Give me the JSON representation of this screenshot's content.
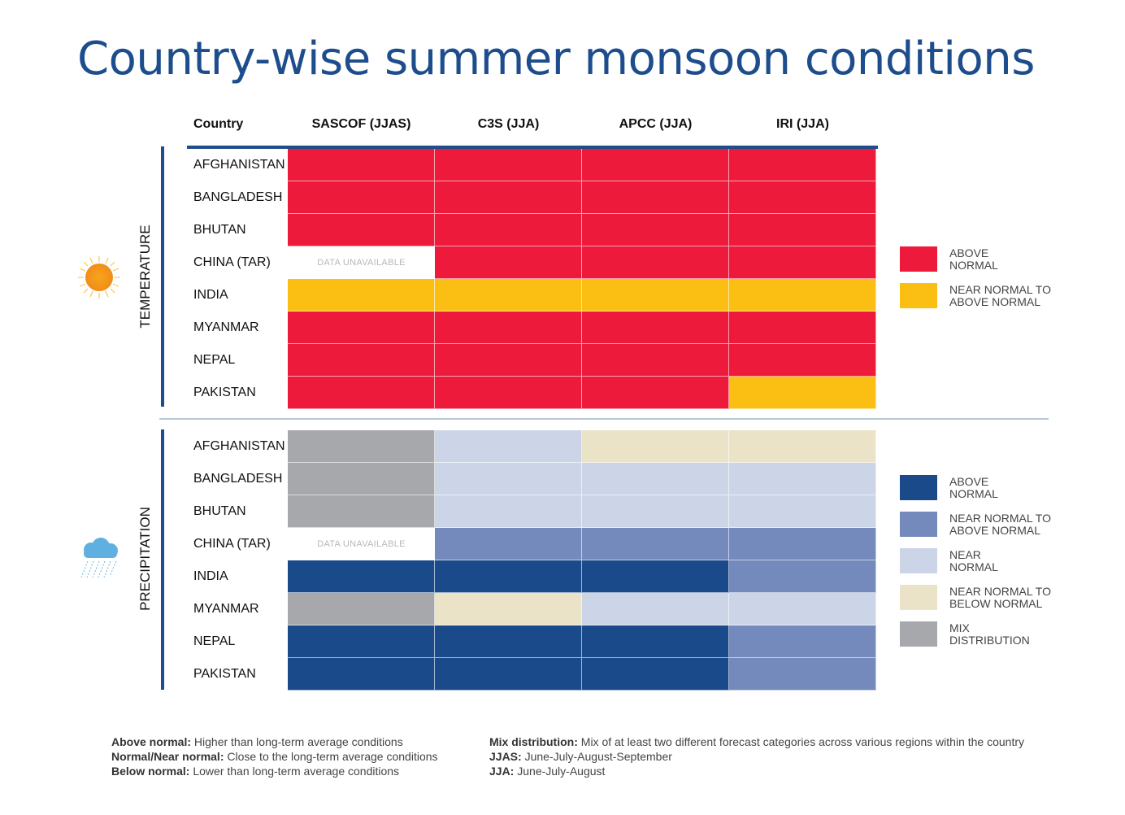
{
  "title": "Country-wise summer monsoon conditions",
  "header": {
    "country": "Country",
    "columns": [
      "SASCOF (JJAS)",
      "C3S (JJA)",
      "APCC (JJA)",
      "IRI (JJA)"
    ]
  },
  "colors": {
    "above_normal_temp": "#ed1a3b",
    "near_to_above_temp": "#fbbf14",
    "above_normal_prec": "#1a4a8a",
    "near_to_above_prec": "#7489bc",
    "near_normal": "#ccd5e8",
    "near_to_below": "#ebe3c8",
    "mix": "#a7a8ac",
    "unavailable": "#ffffff"
  },
  "chart_data": {
    "type": "table",
    "title": "Country-wise summer monsoon conditions",
    "columns": [
      "SASCOF (JJAS)",
      "C3S (JJA)",
      "APCC (JJA)",
      "IRI (JJA)"
    ],
    "sections": [
      {
        "label": "TEMPERATURE",
        "rows": [
          {
            "country": "AFGHANISTAN",
            "values": [
              "above_normal_temp",
              "above_normal_temp",
              "above_normal_temp",
              "above_normal_temp"
            ]
          },
          {
            "country": "BANGLADESH",
            "values": [
              "above_normal_temp",
              "above_normal_temp",
              "above_normal_temp",
              "above_normal_temp"
            ]
          },
          {
            "country": "BHUTAN",
            "values": [
              "above_normal_temp",
              "above_normal_temp",
              "above_normal_temp",
              "above_normal_temp"
            ]
          },
          {
            "country": "CHINA (TAR)",
            "values": [
              "unavailable",
              "above_normal_temp",
              "above_normal_temp",
              "above_normal_temp"
            ]
          },
          {
            "country": "INDIA",
            "values": [
              "near_to_above_temp",
              "near_to_above_temp",
              "near_to_above_temp",
              "near_to_above_temp"
            ]
          },
          {
            "country": "MYANMAR",
            "values": [
              "above_normal_temp",
              "above_normal_temp",
              "above_normal_temp",
              "above_normal_temp"
            ]
          },
          {
            "country": "NEPAL",
            "values": [
              "above_normal_temp",
              "above_normal_temp",
              "above_normal_temp",
              "above_normal_temp"
            ]
          },
          {
            "country": "PAKISTAN",
            "values": [
              "above_normal_temp",
              "above_normal_temp",
              "above_normal_temp",
              "near_to_above_temp"
            ]
          }
        ],
        "legend": [
          {
            "key": "above_normal_temp",
            "label": "ABOVE NORMAL"
          },
          {
            "key": "near_to_above_temp",
            "label": "NEAR NORMAL TO ABOVE NORMAL"
          }
        ]
      },
      {
        "label": "PRECIPITATION",
        "rows": [
          {
            "country": "AFGHANISTAN",
            "values": [
              "mix",
              "near_normal",
              "near_to_below",
              "near_to_below"
            ]
          },
          {
            "country": "BANGLADESH",
            "values": [
              "mix",
              "near_normal",
              "near_normal",
              "near_normal"
            ]
          },
          {
            "country": "BHUTAN",
            "values": [
              "mix",
              "near_normal",
              "near_normal",
              "near_normal"
            ]
          },
          {
            "country": "CHINA (TAR)",
            "values": [
              "unavailable",
              "near_to_above_prec",
              "near_to_above_prec",
              "near_to_above_prec"
            ]
          },
          {
            "country": "INDIA",
            "values": [
              "above_normal_prec",
              "above_normal_prec",
              "above_normal_prec",
              "near_to_above_prec"
            ]
          },
          {
            "country": "MYANMAR",
            "values": [
              "mix",
              "near_to_below",
              "near_normal",
              "near_normal"
            ]
          },
          {
            "country": "NEPAL",
            "values": [
              "above_normal_prec",
              "above_normal_prec",
              "above_normal_prec",
              "near_to_above_prec"
            ]
          },
          {
            "country": "PAKISTAN",
            "values": [
              "above_normal_prec",
              "above_normal_prec",
              "above_normal_prec",
              "near_to_above_prec"
            ]
          }
        ],
        "legend": [
          {
            "key": "above_normal_prec",
            "label": "ABOVE NORMAL"
          },
          {
            "key": "near_to_above_prec",
            "label": "NEAR NORMAL TO ABOVE NORMAL"
          },
          {
            "key": "near_normal",
            "label": "NEAR NORMAL"
          },
          {
            "key": "near_to_below",
            "label": "NEAR NORMAL TO BELOW NORMAL"
          },
          {
            "key": "mix",
            "label": "MIX DISTRIBUTION"
          }
        ]
      }
    ],
    "unavailable_text": "DATA UNAVAILABLE"
  },
  "notes": {
    "left": [
      {
        "term": "Above normal:",
        "text": " Higher than long-term average conditions"
      },
      {
        "term": "Normal/Near normal:",
        "text": " Close to the long-term average conditions"
      },
      {
        "term": "Below normal:",
        "text": " Lower than long-term average conditions"
      }
    ],
    "right": [
      {
        "term": "Mix distribution:",
        "text": " Mix of at least two different forecast categories across various regions within the country"
      },
      {
        "term": "JJAS:",
        "text": " June-July-August-September"
      },
      {
        "term": "JJA:",
        "text": " June-July-August"
      }
    ]
  },
  "icons": {
    "temperature": "sun-icon",
    "precipitation": "rain-cloud-icon"
  }
}
